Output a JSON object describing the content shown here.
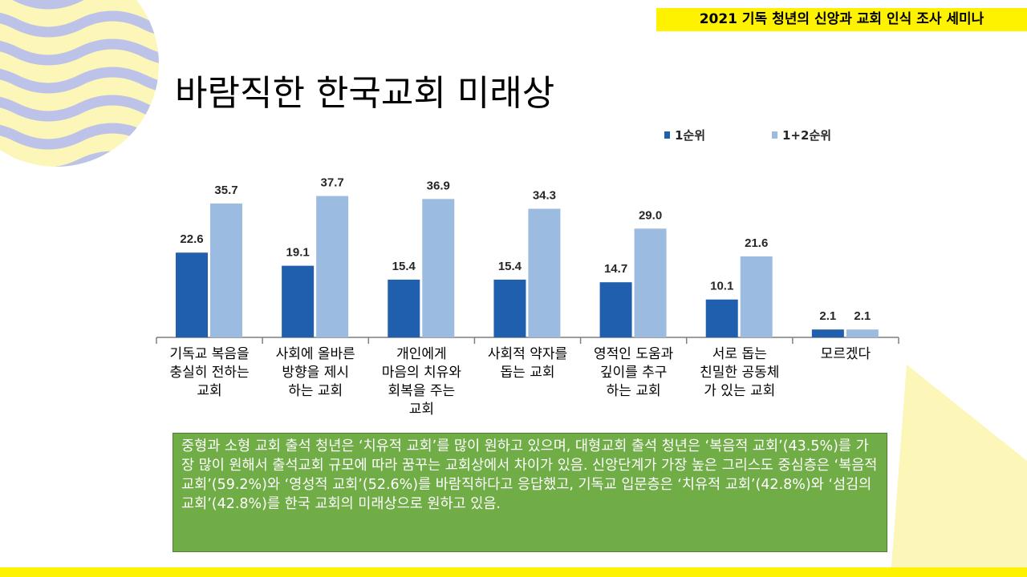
{
  "header": {
    "banner": "2021 기독 청년의 신앙과 교회 인식 조사 세미나",
    "title": "바람직한 한국교회 미래상"
  },
  "colors": {
    "series1": "#1f5fad",
    "series2": "#9bbbe0",
    "accent_yellow": "#fff200",
    "summary_bg": "#70ad47",
    "deco_wave_purple": "#bcc2e8",
    "deco_pale_yellow": "#fcf6b8"
  },
  "chart_data": {
    "type": "bar",
    "title": "",
    "xlabel": "",
    "ylabel": "",
    "ylim": [
      0,
      40
    ],
    "legend_position": "top-right",
    "categories": [
      [
        "기독교 복음을",
        "충실히 전하는",
        "교회"
      ],
      [
        "사회에 올바른",
        "방향을 제시",
        "하는 교회"
      ],
      [
        "개인에게",
        "마음의 치유와",
        "회복을 주는",
        "교회"
      ],
      [
        "사회적 약자를",
        "돕는 교회"
      ],
      [
        "영적인 도움과",
        "깊이를 추구",
        "하는 교회"
      ],
      [
        "서로 돕는",
        "친밀한 공동체",
        "가 있는 교회"
      ],
      [
        "모르겠다"
      ]
    ],
    "series": [
      {
        "name": "1순위",
        "values": [
          22.6,
          19.1,
          15.4,
          15.4,
          14.7,
          10.1,
          2.1
        ]
      },
      {
        "name": "1+2순위",
        "values": [
          35.7,
          37.7,
          36.9,
          34.3,
          29.0,
          21.6,
          2.1
        ]
      }
    ]
  },
  "summary": {
    "text": "중형과 소형 교회 출석 청년은 ‘치유적 교회’를 많이 원하고 있으며, 대형교회 출석 청년은 ‘복음적 교회’(43.5%)를 가장 많이 원해서 출석교회 규모에 따라 꿈꾸는 교회상에서 차이가 있음. 신앙단계가 가장 높은 그리스도 중심층은 ‘복음적 교회’(59.2%)와 ‘영성적 교회’(52.6%)를 바람직하다고 응답했고, 기독교 입문층은 ‘치유적 교회’(42.8%)와 ‘섬김의 교회’(42.8%)를 한국 교회의 미래상으로 원하고 있음."
  }
}
